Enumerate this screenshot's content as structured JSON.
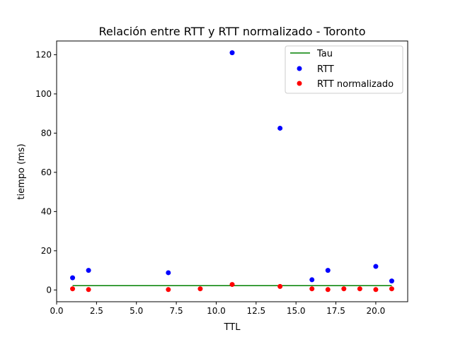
{
  "chart_data": {
    "type": "scatter",
    "title": "Relación entre RTT y RTT normalizado - Toronto",
    "xlabel": "TTL",
    "ylabel": "tiempo (ms)",
    "xlim": [
      0.0,
      22.0
    ],
    "ylim": [
      -6.0,
      127.0
    ],
    "xticks": [
      0.0,
      2.5,
      5.0,
      7.5,
      10.0,
      12.5,
      15.0,
      17.5,
      20.0
    ],
    "xtick_labels": [
      "0.0",
      "2.5",
      "5.0",
      "7.5",
      "10.0",
      "12.5",
      "15.0",
      "17.5",
      "20.0"
    ],
    "yticks": [
      0,
      20,
      40,
      60,
      80,
      100,
      120
    ],
    "ytick_labels": [
      "0",
      "20",
      "40",
      "60",
      "80",
      "100",
      "120"
    ],
    "grid": false,
    "legend_position": "top-right",
    "series": [
      {
        "name": "Tau",
        "kind": "line",
        "color": "#008000",
        "x": [
          1,
          21
        ],
        "y": [
          2.2,
          2.2
        ]
      },
      {
        "name": "RTT",
        "kind": "scatter",
        "color": "#0000ff",
        "x": [
          1,
          2,
          7,
          11,
          14,
          16,
          17,
          20,
          21
        ],
        "y": [
          6.2,
          10.0,
          8.8,
          121.0,
          82.5,
          5.2,
          10.0,
          12.0,
          4.6
        ]
      },
      {
        "name": "RTT normalizado",
        "kind": "scatter",
        "color": "#ff0000",
        "x": [
          1,
          2,
          7,
          9,
          11,
          14,
          16,
          17,
          18,
          19,
          20,
          21
        ],
        "y": [
          0.6,
          0.2,
          0.2,
          0.6,
          2.8,
          1.8,
          0.6,
          0.2,
          0.6,
          0.6,
          0.2,
          0.6
        ]
      }
    ]
  }
}
